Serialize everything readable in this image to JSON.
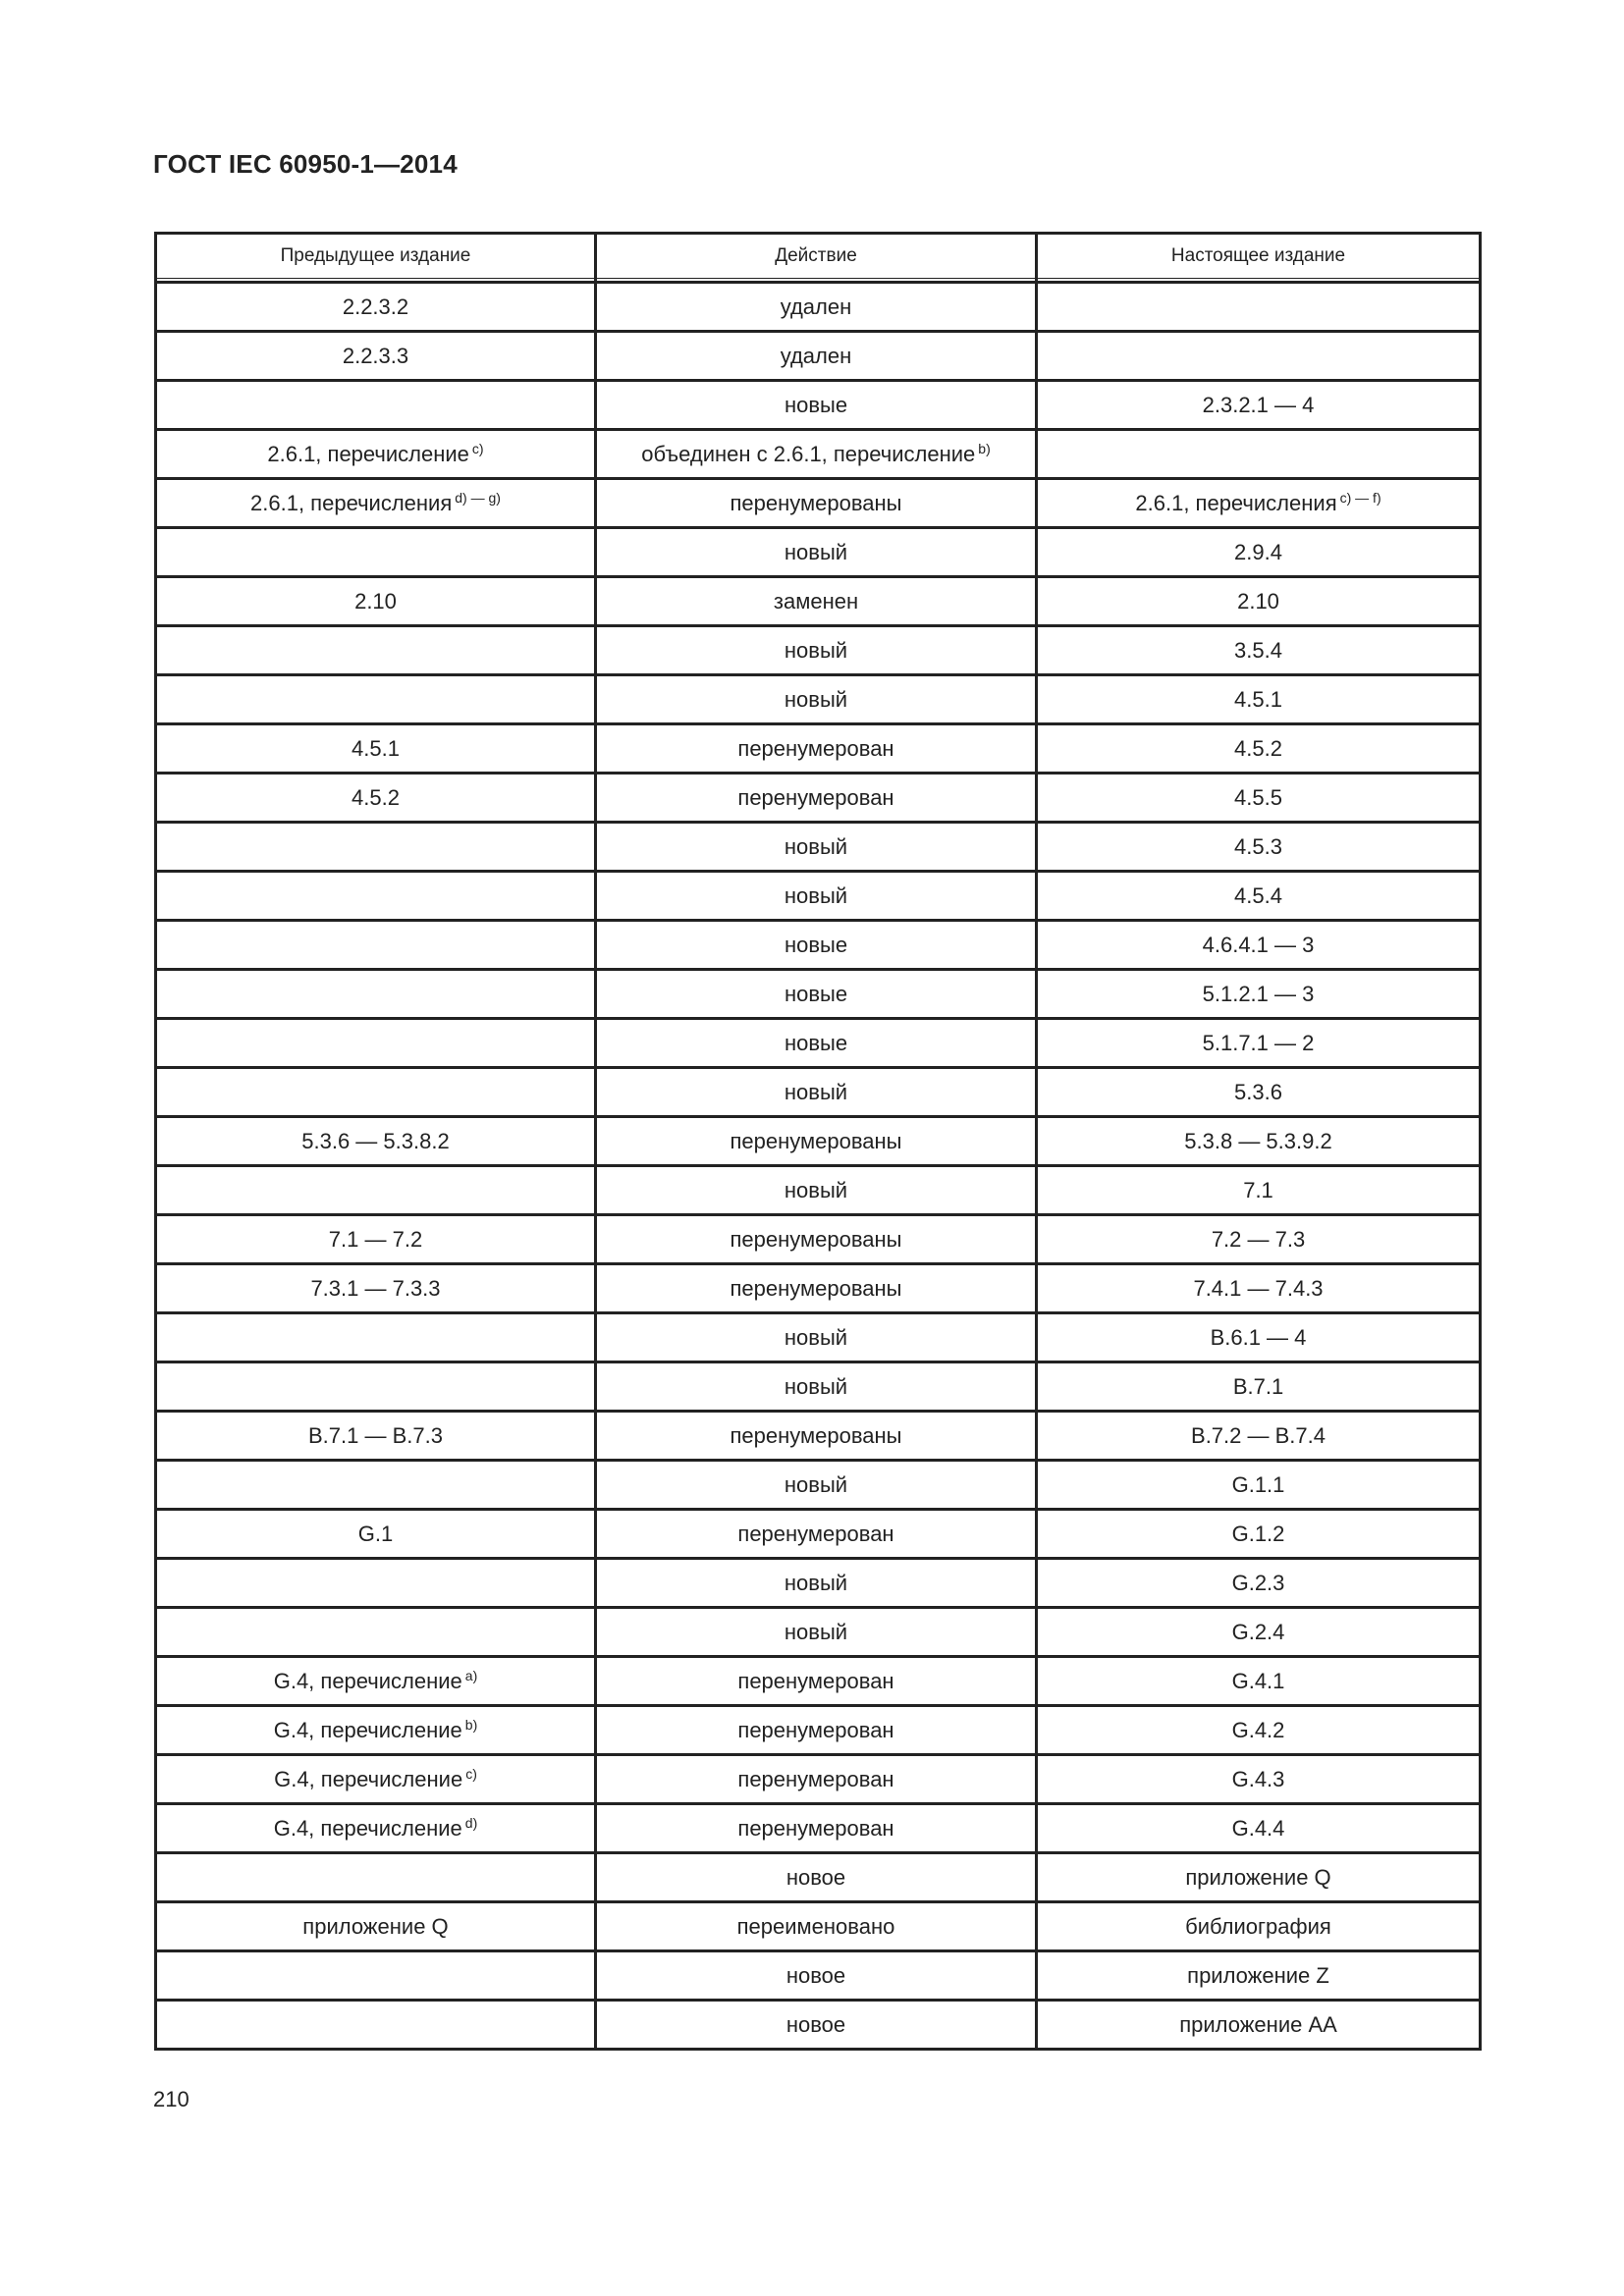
{
  "header": {
    "title": "ГОСТ IEC 60950-1—2014"
  },
  "table": {
    "columns": [
      "Предыдущее издание",
      "Действие",
      "Настоящее издание"
    ],
    "rows": [
      {
        "prev": "2.2.3.2",
        "prev_sup": "",
        "action": "удален",
        "action_sup": "",
        "cur": "",
        "cur_sup": ""
      },
      {
        "prev": "2.2.3.3",
        "prev_sup": "",
        "action": "удален",
        "action_sup": "",
        "cur": "",
        "cur_sup": ""
      },
      {
        "prev": "",
        "prev_sup": "",
        "action": "новые",
        "action_sup": "",
        "cur": "2.3.2.1 — 4",
        "cur_sup": ""
      },
      {
        "prev": "2.6.1, перечисление",
        "prev_sup": "c)",
        "action": "объединен с 2.6.1, перечисление",
        "action_sup": "b)",
        "cur": "",
        "cur_sup": ""
      },
      {
        "prev": "2.6.1, перечисления",
        "prev_sup": "d) — g)",
        "action": "перенумерованы",
        "action_sup": "",
        "cur": "2.6.1, перечисления",
        "cur_sup": "c) — f)"
      },
      {
        "prev": "",
        "prev_sup": "",
        "action": "новый",
        "action_sup": "",
        "cur": "2.9.4",
        "cur_sup": ""
      },
      {
        "prev": "2.10",
        "prev_sup": "",
        "action": "заменен",
        "action_sup": "",
        "cur": "2.10",
        "cur_sup": ""
      },
      {
        "prev": "",
        "prev_sup": "",
        "action": "новый",
        "action_sup": "",
        "cur": "3.5.4",
        "cur_sup": ""
      },
      {
        "prev": "",
        "prev_sup": "",
        "action": "новый",
        "action_sup": "",
        "cur": "4.5.1",
        "cur_sup": ""
      },
      {
        "prev": "4.5.1",
        "prev_sup": "",
        "action": "перенумерован",
        "action_sup": "",
        "cur": "4.5.2",
        "cur_sup": ""
      },
      {
        "prev": "4.5.2",
        "prev_sup": "",
        "action": "перенумерован",
        "action_sup": "",
        "cur": "4.5.5",
        "cur_sup": ""
      },
      {
        "prev": "",
        "prev_sup": "",
        "action": "новый",
        "action_sup": "",
        "cur": "4.5.3",
        "cur_sup": ""
      },
      {
        "prev": "",
        "prev_sup": "",
        "action": "новый",
        "action_sup": "",
        "cur": "4.5.4",
        "cur_sup": ""
      },
      {
        "prev": "",
        "prev_sup": "",
        "action": "новые",
        "action_sup": "",
        "cur": "4.6.4.1 — 3",
        "cur_sup": ""
      },
      {
        "prev": "",
        "prev_sup": "",
        "action": "новые",
        "action_sup": "",
        "cur": "5.1.2.1 — 3",
        "cur_sup": ""
      },
      {
        "prev": "",
        "prev_sup": "",
        "action": "новые",
        "action_sup": "",
        "cur": "5.1.7.1 — 2",
        "cur_sup": ""
      },
      {
        "prev": "",
        "prev_sup": "",
        "action": "новый",
        "action_sup": "",
        "cur": "5.3.6",
        "cur_sup": ""
      },
      {
        "prev": "5.3.6 — 5.3.8.2",
        "prev_sup": "",
        "action": "перенумерованы",
        "action_sup": "",
        "cur": "5.3.8 — 5.3.9.2",
        "cur_sup": ""
      },
      {
        "prev": "",
        "prev_sup": "",
        "action": "новый",
        "action_sup": "",
        "cur": "7.1",
        "cur_sup": ""
      },
      {
        "prev": "7.1 — 7.2",
        "prev_sup": "",
        "action": "перенумерованы",
        "action_sup": "",
        "cur": "7.2 — 7.3",
        "cur_sup": ""
      },
      {
        "prev": "7.3.1 — 7.3.3",
        "prev_sup": "",
        "action": "перенумерованы",
        "action_sup": "",
        "cur": "7.4.1 — 7.4.3",
        "cur_sup": ""
      },
      {
        "prev": "",
        "prev_sup": "",
        "action": "новый",
        "action_sup": "",
        "cur": "B.6.1 — 4",
        "cur_sup": ""
      },
      {
        "prev": "",
        "prev_sup": "",
        "action": "новый",
        "action_sup": "",
        "cur": "B.7.1",
        "cur_sup": ""
      },
      {
        "prev": "B.7.1 — B.7.3",
        "prev_sup": "",
        "action": "перенумерованы",
        "action_sup": "",
        "cur": "B.7.2 — B.7.4",
        "cur_sup": ""
      },
      {
        "prev": "",
        "prev_sup": "",
        "action": "новый",
        "action_sup": "",
        "cur": "G.1.1",
        "cur_sup": ""
      },
      {
        "prev": "G.1",
        "prev_sup": "",
        "action": "перенумерован",
        "action_sup": "",
        "cur": "G.1.2",
        "cur_sup": ""
      },
      {
        "prev": "",
        "prev_sup": "",
        "action": "новый",
        "action_sup": "",
        "cur": "G.2.3",
        "cur_sup": ""
      },
      {
        "prev": "",
        "prev_sup": "",
        "action": "новый",
        "action_sup": "",
        "cur": "G.2.4",
        "cur_sup": ""
      },
      {
        "prev": "G.4, перечисление",
        "prev_sup": "a)",
        "action": "перенумерован",
        "action_sup": "",
        "cur": "G.4.1",
        "cur_sup": ""
      },
      {
        "prev": "G.4, перечисление",
        "prev_sup": "b)",
        "action": "перенумерован",
        "action_sup": "",
        "cur": "G.4.2",
        "cur_sup": ""
      },
      {
        "prev": "G.4, перечисление",
        "prev_sup": "c)",
        "action": "перенумерован",
        "action_sup": "",
        "cur": "G.4.3",
        "cur_sup": ""
      },
      {
        "prev": "G.4, перечисление",
        "prev_sup": "d)",
        "action": "перенумерован",
        "action_sup": "",
        "cur": "G.4.4",
        "cur_sup": ""
      },
      {
        "prev": "",
        "prev_sup": "",
        "action": "новое",
        "action_sup": "",
        "cur": "приложение Q",
        "cur_sup": ""
      },
      {
        "prev": "приложение Q",
        "prev_sup": "",
        "action": "переименовано",
        "action_sup": "",
        "cur": "библиография",
        "cur_sup": ""
      },
      {
        "prev": "",
        "prev_sup": "",
        "action": "новое",
        "action_sup": "",
        "cur": "приложение Z",
        "cur_sup": ""
      },
      {
        "prev": "",
        "prev_sup": "",
        "action": "новое",
        "action_sup": "",
        "cur": "приложение AA",
        "cur_sup": ""
      }
    ]
  },
  "footer": {
    "page_number": "210"
  }
}
